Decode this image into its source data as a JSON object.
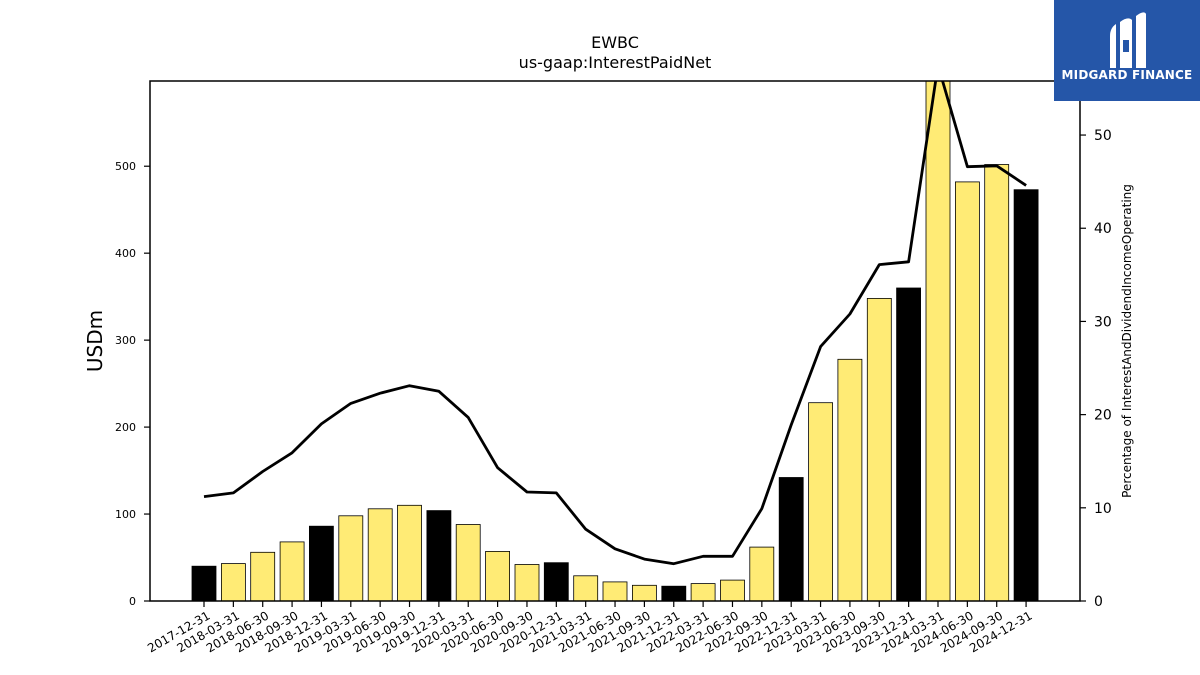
{
  "chart_data": {
    "type": "bar",
    "title": "EWBC",
    "subtitle": "us-gaap:InterestPaidNet",
    "ylabel": "USDm",
    "y2label": "Percentage of InterestAndDividendIncomeOperating",
    "ylim": [
      0,
      598
    ],
    "y2lim": [
      0,
      55.8
    ],
    "yticks": [
      0,
      100,
      200,
      300,
      400,
      500
    ],
    "y2ticks": [
      0,
      10,
      20,
      30,
      40,
      50
    ],
    "categories": [
      "2017-12-31",
      "2018-03-31",
      "2018-06-30",
      "2018-09-30",
      "2018-12-31",
      "2019-03-31",
      "2019-06-30",
      "2019-09-30",
      "2019-12-31",
      "2020-03-31",
      "2020-06-30",
      "2020-09-30",
      "2020-12-31",
      "2021-03-31",
      "2021-06-30",
      "2021-09-30",
      "2021-12-31",
      "2022-03-31",
      "2022-06-30",
      "2022-09-30",
      "2022-12-31",
      "2023-03-31",
      "2023-06-30",
      "2023-09-30",
      "2023-12-31",
      "2024-03-31",
      "2024-06-30",
      "2024-09-30",
      "2024-12-31"
    ],
    "series": [
      {
        "type": "bar",
        "axis": "left",
        "values": [
          40,
          43,
          56,
          68,
          86,
          98,
          106,
          110,
          104,
          88,
          57,
          42,
          44,
          29,
          22,
          18,
          17,
          20,
          24,
          62,
          142,
          228,
          278,
          348,
          360,
          600,
          482,
          502,
          473
        ],
        "colors": [
          "#000000",
          "#ffeb75",
          "#ffeb75",
          "#ffeb75",
          "#000000",
          "#ffeb75",
          "#ffeb75",
          "#ffeb75",
          "#000000",
          "#ffeb75",
          "#ffeb75",
          "#ffeb75",
          "#000000",
          "#ffeb75",
          "#ffeb75",
          "#ffeb75",
          "#000000",
          "#ffeb75",
          "#ffeb75",
          "#ffeb75",
          "#000000",
          "#ffeb75",
          "#ffeb75",
          "#ffeb75",
          "#000000",
          "#ffeb75",
          "#ffeb75",
          "#ffeb75",
          "#000000"
        ]
      },
      {
        "type": "line",
        "axis": "right",
        "color": "#000000",
        "values": [
          11.2,
          11.6,
          13.9,
          15.9,
          19.0,
          21.2,
          22.3,
          23.1,
          22.5,
          19.7,
          14.3,
          11.7,
          11.6,
          7.7,
          5.6,
          4.5,
          4.0,
          4.8,
          4.8,
          9.9,
          18.9,
          27.3,
          30.8,
          36.1,
          36.4,
          57.5,
          46.6,
          46.7,
          44.6
        ]
      }
    ],
    "grid": false
  },
  "logo": {
    "name": "MIDGARD FINANCE",
    "background": "#2556a8"
  }
}
